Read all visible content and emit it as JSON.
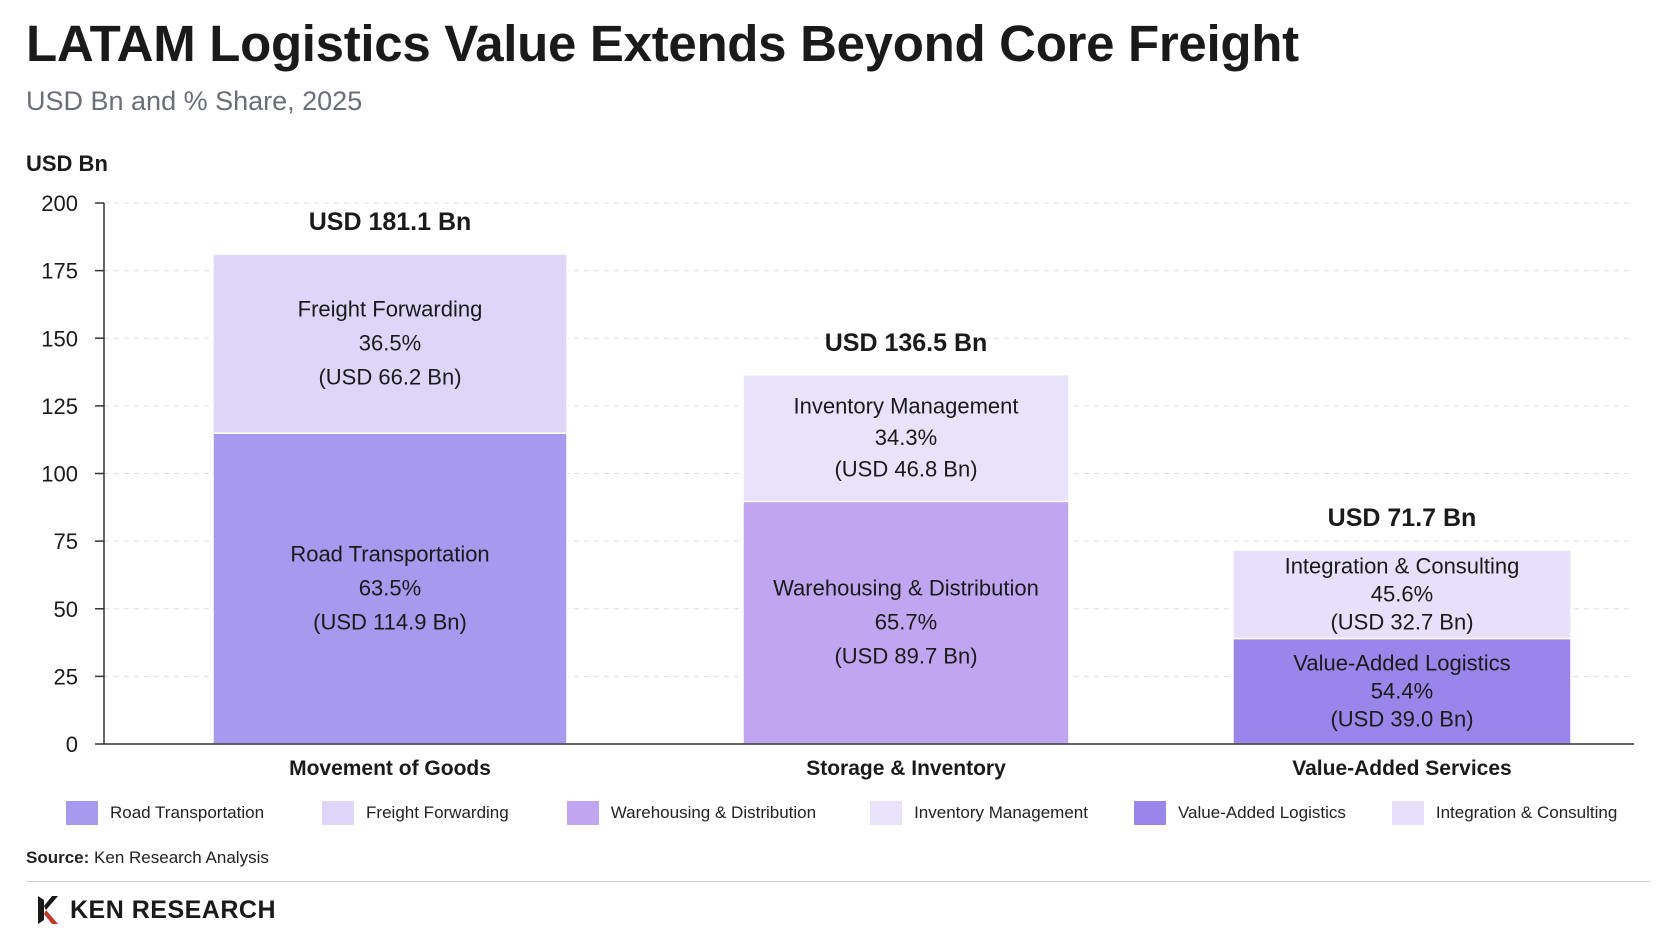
{
  "title": "LATAM Logistics Value Extends Beyond Core Freight",
  "subtitle": "USD Bn and % Share, 2025",
  "source_label": "Source:",
  "source_text": "Ken Research Analysis",
  "brand": "KEN RESEARCH",
  "brand_icon": "ken-research-logo-icon",
  "colors": {
    "road": "#A699EE",
    "freight": "#DDD6F9",
    "warehousing": "#C0A6F0",
    "inventory": "#E8E2FB",
    "vas": "#9A85EA",
    "integration": "#E6E0FA"
  },
  "chart_data": {
    "type": "bar",
    "stacked": true,
    "ylabel": "USD Bn",
    "ylim": [
      0,
      200
    ],
    "yticks": [
      0,
      25,
      50,
      75,
      100,
      125,
      150,
      175,
      200
    ],
    "grid": true,
    "legend_position": "bottom",
    "categories": [
      "Movement of Goods",
      "Storage & Inventory",
      "Value-Added Services"
    ],
    "bars": [
      {
        "category": "Movement of Goods",
        "total_label": "USD 181.1 Bn",
        "segments": [
          {
            "name": "Road Transportation",
            "value": 114.9,
            "share": "63.5%",
            "value_label": "(USD 114.9 Bn)",
            "color_key": "road"
          },
          {
            "name": "Freight Forwarding",
            "value": 66.2,
            "share": "36.5%",
            "value_label": "(USD 66.2 Bn)",
            "color_key": "freight"
          }
        ]
      },
      {
        "category": "Storage & Inventory",
        "total_label": "USD 136.5 Bn",
        "segments": [
          {
            "name": "Warehousing & Distribution",
            "value": 89.7,
            "share": "65.7%",
            "value_label": "(USD 89.7 Bn)",
            "color_key": "warehousing"
          },
          {
            "name": "Inventory Management",
            "value": 46.8,
            "share": "34.3%",
            "value_label": "(USD 46.8 Bn)",
            "color_key": "inventory"
          }
        ]
      },
      {
        "category": "Value-Added Services",
        "total_label": "USD 71.7 Bn",
        "segments": [
          {
            "name": "Value-Added Logistics",
            "value": 39.0,
            "share": "54.4%",
            "value_label": "(USD 39.0 Bn)",
            "color_key": "vas"
          },
          {
            "name": "Integration & Consulting",
            "value": 32.7,
            "share": "45.6%",
            "value_label": "(USD 32.7 Bn)",
            "color_key": "integration"
          }
        ]
      }
    ],
    "legend": [
      {
        "label": "Road Transportation",
        "color_key": "road"
      },
      {
        "label": "Freight Forwarding",
        "color_key": "freight"
      },
      {
        "label": "Warehousing & Distribution",
        "color_key": "warehousing"
      },
      {
        "label": "Inventory Management",
        "color_key": "inventory"
      },
      {
        "label": "Value-Added Logistics",
        "color_key": "vas"
      },
      {
        "label": "Integration & Consulting",
        "color_key": "integration"
      }
    ]
  }
}
